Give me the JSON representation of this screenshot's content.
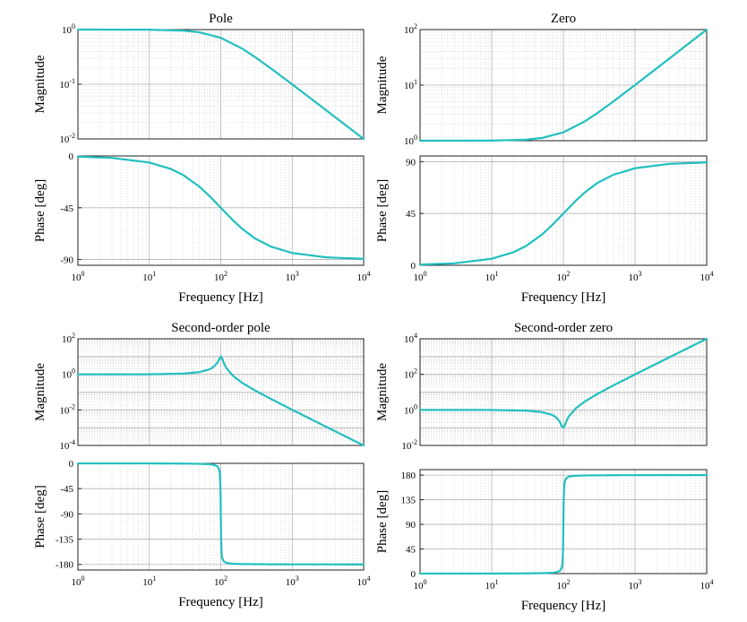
{
  "theme": {
    "curve_color": "#22bfbf"
  },
  "chart_data": [
    {
      "title": "Pole",
      "type": "line",
      "xlabel": "Frequency [Hz]",
      "x_scale": "log",
      "x_ticks": [
        1,
        10,
        100,
        1000,
        10000
      ],
      "magnitude": {
        "ylabel": "Magnitude",
        "y_scale": "log",
        "ylim": [
          0.01,
          1
        ],
        "y_ticks": [
          0.01,
          0.1,
          1
        ],
        "points": [
          [
            1,
            1.0
          ],
          [
            10,
            0.995
          ],
          [
            30,
            0.958
          ],
          [
            50,
            0.894
          ],
          [
            100,
            0.707
          ],
          [
            200,
            0.447
          ],
          [
            300,
            0.316
          ],
          [
            500,
            0.196
          ],
          [
            1000,
            0.0995
          ],
          [
            3000,
            0.0333
          ],
          [
            10000,
            0.01
          ]
        ]
      },
      "phase": {
        "ylabel": "Phase [deg]",
        "y_scale": "linear",
        "ylim": [
          -95,
          0
        ],
        "y_ticks": [
          0,
          -45,
          -90
        ],
        "points": [
          [
            1,
            -0.6
          ],
          [
            3,
            -1.7
          ],
          [
            10,
            -5.7
          ],
          [
            20,
            -11.3
          ],
          [
            30,
            -16.7
          ],
          [
            50,
            -26.6
          ],
          [
            70,
            -35
          ],
          [
            100,
            -45
          ],
          [
            150,
            -56.3
          ],
          [
            200,
            -63.4
          ],
          [
            300,
            -71.6
          ],
          [
            500,
            -78.7
          ],
          [
            1000,
            -84.3
          ],
          [
            3000,
            -88.1
          ],
          [
            10000,
            -89.4
          ]
        ]
      }
    },
    {
      "title": "Zero",
      "type": "line",
      "xlabel": "Frequency [Hz]",
      "x_scale": "log",
      "x_ticks": [
        1,
        10,
        100,
        1000,
        10000
      ],
      "magnitude": {
        "ylabel": "Magnitude",
        "y_scale": "log",
        "ylim": [
          1,
          100
        ],
        "y_ticks": [
          1,
          10,
          100
        ],
        "points": [
          [
            1,
            1.0
          ],
          [
            10,
            1.005
          ],
          [
            30,
            1.044
          ],
          [
            50,
            1.118
          ],
          [
            100,
            1.414
          ],
          [
            200,
            2.236
          ],
          [
            300,
            3.162
          ],
          [
            500,
            5.099
          ],
          [
            1000,
            10.05
          ],
          [
            3000,
            30.02
          ],
          [
            10000,
            100
          ]
        ]
      },
      "phase": {
        "ylabel": "Phase [deg]",
        "y_scale": "linear",
        "ylim": [
          0,
          95
        ],
        "y_ticks": [
          0,
          45,
          90
        ],
        "points": [
          [
            1,
            0.6
          ],
          [
            3,
            1.7
          ],
          [
            10,
            5.7
          ],
          [
            20,
            11.3
          ],
          [
            30,
            16.7
          ],
          [
            50,
            26.6
          ],
          [
            70,
            35
          ],
          [
            100,
            45
          ],
          [
            150,
            56.3
          ],
          [
            200,
            63.4
          ],
          [
            300,
            71.6
          ],
          [
            500,
            78.7
          ],
          [
            1000,
            84.3
          ],
          [
            3000,
            88.1
          ],
          [
            10000,
            89.4
          ]
        ]
      }
    },
    {
      "title": "Second-order pole",
      "type": "line",
      "xlabel": "Frequency [Hz]",
      "x_scale": "log",
      "x_ticks": [
        1,
        10,
        100,
        1000,
        10000
      ],
      "magnitude": {
        "ylabel": "Magnitude",
        "y_scale": "log",
        "ylim": [
          0.0001,
          100
        ],
        "y_ticks": [
          0.0001,
          0.01,
          1,
          100
        ],
        "points": [
          [
            1,
            1.0
          ],
          [
            10,
            1.01
          ],
          [
            30,
            1.1
          ],
          [
            50,
            1.33
          ],
          [
            70,
            1.93
          ],
          [
            80,
            2.7
          ],
          [
            90,
            4.6
          ],
          [
            95,
            7.0
          ],
          [
            100,
            10
          ],
          [
            105,
            7.3
          ],
          [
            110,
            4.4
          ],
          [
            120,
            2.2
          ],
          [
            150,
            0.79
          ],
          [
            200,
            0.33
          ],
          [
            300,
            0.125
          ],
          [
            500,
            0.042
          ],
          [
            1000,
            0.0101
          ],
          [
            3000,
            0.00111
          ],
          [
            10000,
            0.0001
          ]
        ]
      },
      "phase": {
        "ylabel": "Phase [deg]",
        "y_scale": "linear",
        "ylim": [
          -190,
          0
        ],
        "y_ticks": [
          0,
          -45,
          -90,
          -135,
          -180
        ],
        "points": [
          [
            1,
            -0.1
          ],
          [
            10,
            -0.1
          ],
          [
            30,
            -0.4
          ],
          [
            50,
            -0.8
          ],
          [
            70,
            -1.6
          ],
          [
            80,
            -2.5
          ],
          [
            90,
            -5.4
          ],
          [
            95,
            -11
          ],
          [
            97,
            -18
          ],
          [
            99,
            -45
          ],
          [
            100,
            -90
          ],
          [
            101,
            -135
          ],
          [
            103,
            -162
          ],
          [
            105,
            -169
          ],
          [
            110,
            -174.6
          ],
          [
            120,
            -177.4
          ],
          [
            150,
            -178.9
          ],
          [
            200,
            -179.4
          ],
          [
            500,
            -179.8
          ],
          [
            1000,
            -179.9
          ],
          [
            10000,
            -180
          ]
        ]
      }
    },
    {
      "title": "Second-order zero",
      "type": "line",
      "xlabel": "Frequency [Hz]",
      "x_scale": "log",
      "x_ticks": [
        1,
        10,
        100,
        1000,
        10000
      ],
      "magnitude": {
        "ylabel": "Magnitude",
        "y_scale": "log",
        "ylim": [
          0.01,
          10000
        ],
        "y_ticks": [
          0.01,
          1,
          100,
          10000
        ],
        "points": [
          [
            1,
            1.0
          ],
          [
            10,
            0.99
          ],
          [
            30,
            0.91
          ],
          [
            50,
            0.75
          ],
          [
            70,
            0.52
          ],
          [
            80,
            0.37
          ],
          [
            90,
            0.2
          ],
          [
            95,
            0.12
          ],
          [
            100,
            0.1
          ],
          [
            105,
            0.14
          ],
          [
            110,
            0.23
          ],
          [
            120,
            0.45
          ],
          [
            150,
            1.25
          ],
          [
            200,
            3.0
          ],
          [
            300,
            8.0
          ],
          [
            500,
            24
          ],
          [
            1000,
            99
          ],
          [
            3000,
            899
          ],
          [
            10000,
            9999
          ]
        ]
      },
      "phase": {
        "ylabel": "Phase [deg]",
        "y_scale": "linear",
        "ylim": [
          0,
          190
        ],
        "y_ticks": [
          0,
          45,
          90,
          135,
          180
        ],
        "points": [
          [
            1,
            0.1
          ],
          [
            10,
            0.1
          ],
          [
            30,
            0.4
          ],
          [
            50,
            0.8
          ],
          [
            70,
            1.6
          ],
          [
            80,
            2.5
          ],
          [
            90,
            5.4
          ],
          [
            95,
            11
          ],
          [
            97,
            18
          ],
          [
            99,
            45
          ],
          [
            100,
            90
          ],
          [
            101,
            135
          ],
          [
            103,
            162
          ],
          [
            105,
            169
          ],
          [
            110,
            174.6
          ],
          [
            120,
            177.4
          ],
          [
            150,
            178.9
          ],
          [
            200,
            179.4
          ],
          [
            500,
            179.8
          ],
          [
            1000,
            179.9
          ],
          [
            10000,
            180
          ]
        ]
      }
    }
  ]
}
